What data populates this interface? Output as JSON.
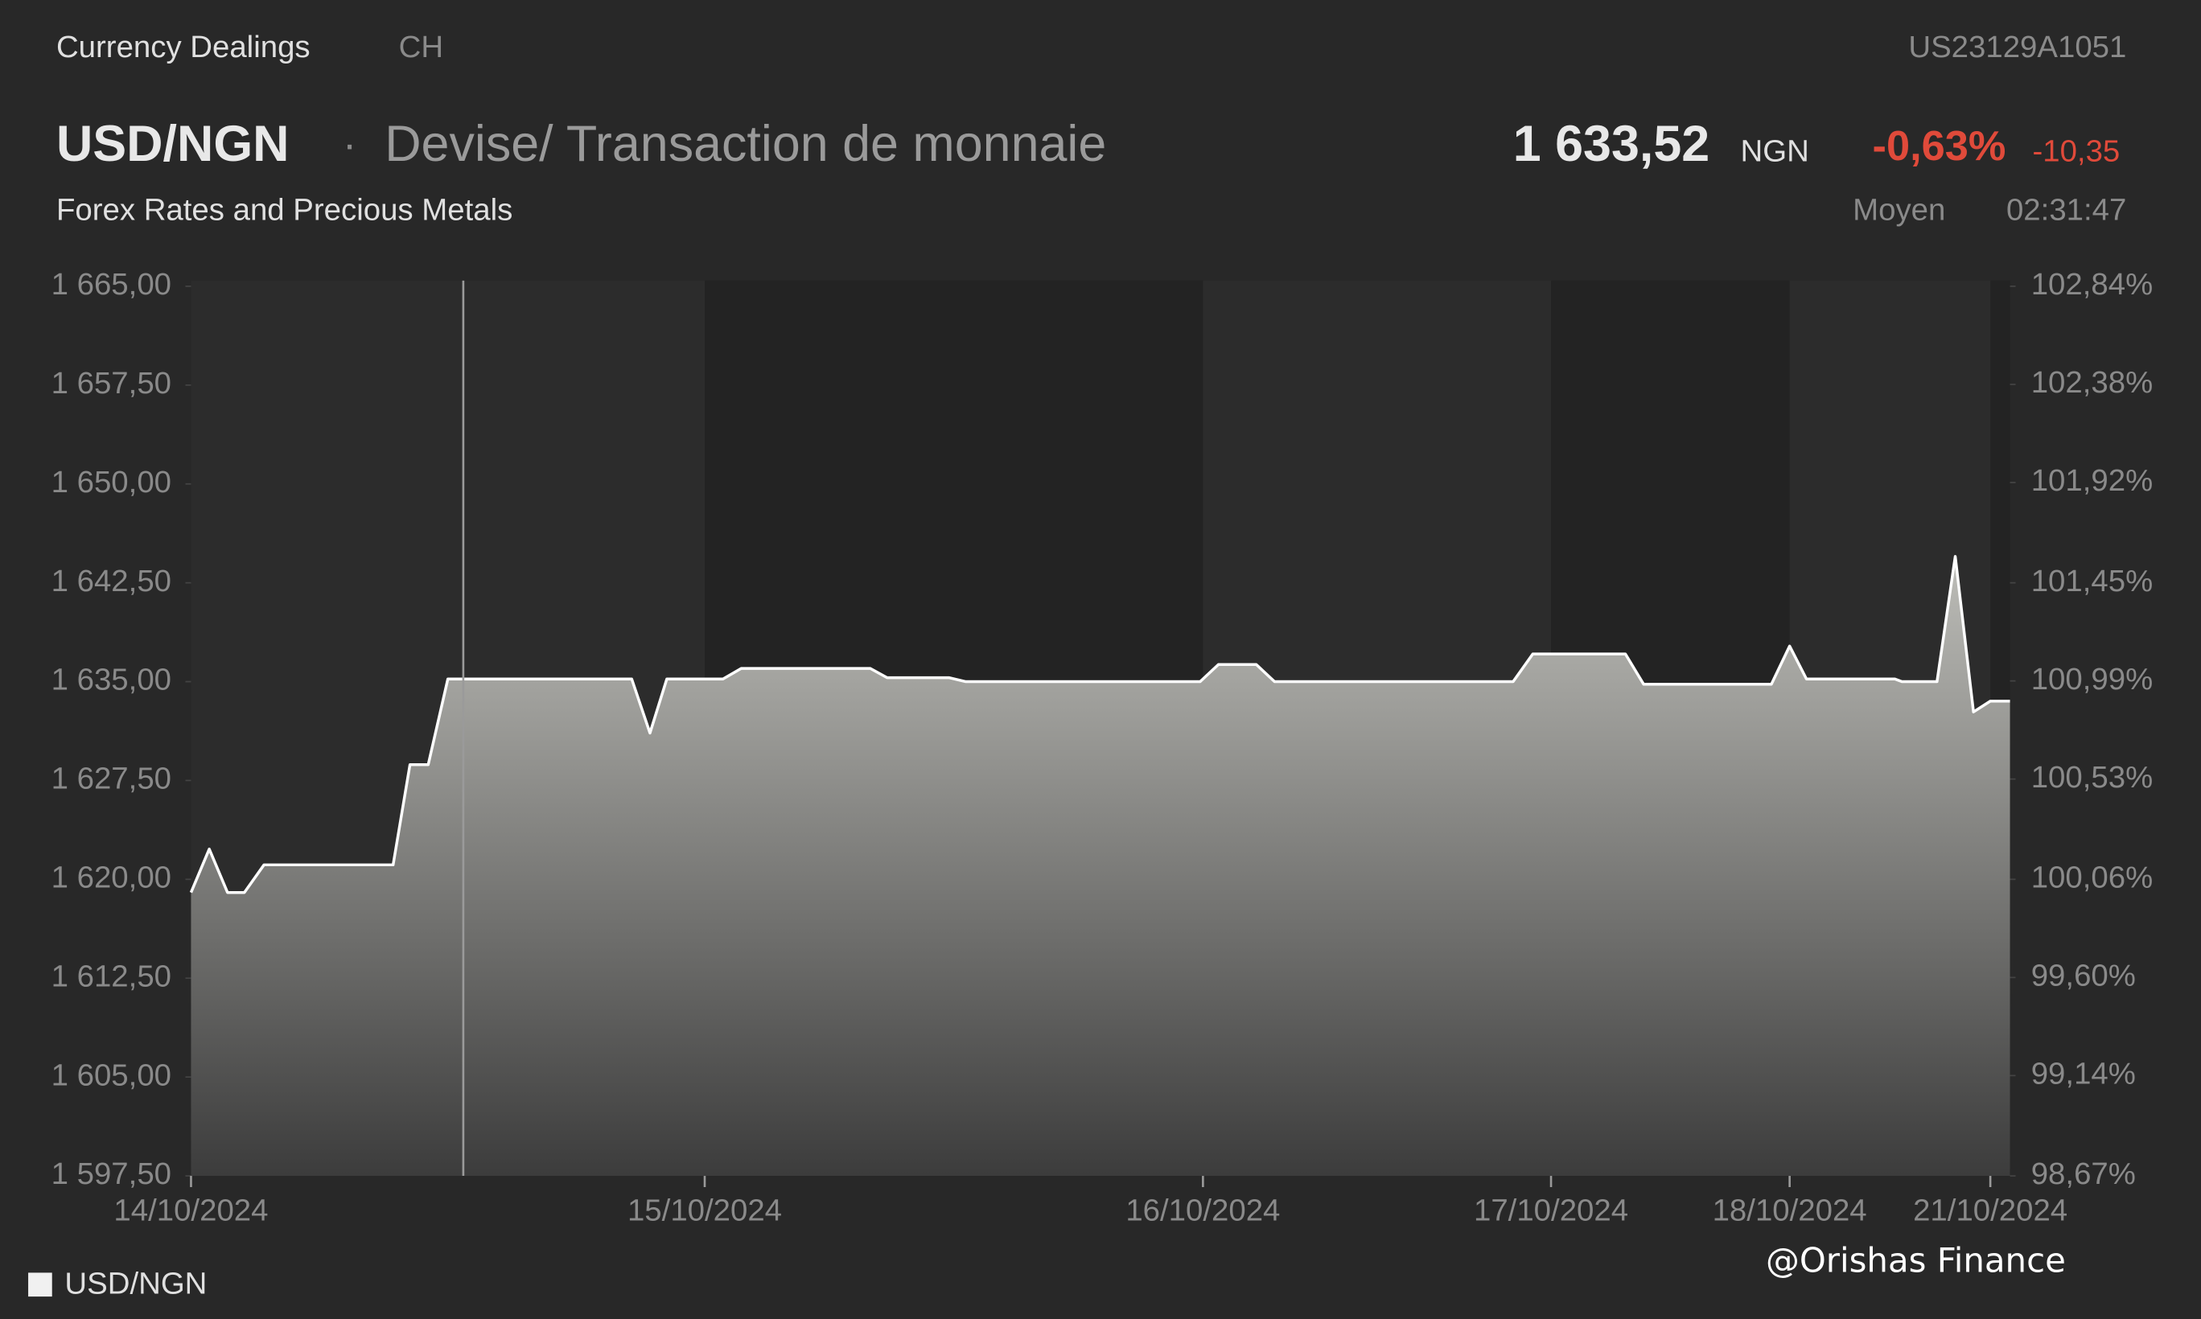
{
  "header": {
    "category": "Currency Dealings",
    "exchange": "CH",
    "isin": "US23129A1051",
    "symbol": "USD/NGN",
    "separator": "·",
    "description": "Devise/ Transaction de monnaie",
    "price": "1 633,52",
    "currency": "NGN",
    "change_pct": "-0,63%",
    "change_abs": "-10,35",
    "subtitle": "Forex Rates and Precious Metals",
    "price_type": "Moyen",
    "time": "02:31:47"
  },
  "chart_data": {
    "type": "area",
    "x": [
      0,
      3.25,
      6.5,
      9.5,
      13,
      36,
      39,
      42.25,
      45.75,
      78.5,
      81.75,
      84.75,
      94.75,
      98,
      121,
      124,
      135,
      138,
      179.75,
      183,
      189.75,
      193,
      235.5,
      239,
      255.5,
      258.75,
      281.5,
      284.75,
      287.75,
      303.5,
      304.75,
      311,
      314.25,
      317.5,
      320.5,
      324
    ],
    "series": [
      {
        "name": "USD/NGN",
        "color": "#ffffff",
        "values": [
          1619.0,
          1622.3,
          1619.0,
          1619.0,
          1621.1,
          1621.1,
          1628.7,
          1628.7,
          1635.2,
          1635.2,
          1631.1,
          1635.2,
          1635.2,
          1636.0,
          1636.0,
          1635.3,
          1635.3,
          1635.0,
          1635.0,
          1636.3,
          1636.3,
          1635.0,
          1635.0,
          1637.1,
          1637.1,
          1634.8,
          1634.8,
          1637.7,
          1635.2,
          1635.2,
          1635.0,
          1635.0,
          1644.5,
          1632.7,
          1633.52,
          1633.52
        ]
      }
    ],
    "xlim": [
      0,
      324
    ],
    "xticks": [
      {
        "value": 0,
        "label": "14/10/2024"
      },
      {
        "value": 91.5,
        "label": "15/10/2024"
      },
      {
        "value": 180.25,
        "label": "16/10/2024"
      },
      {
        "value": 242.25,
        "label": "17/10/2024"
      },
      {
        "value": 284.75,
        "label": "18/10/2024"
      },
      {
        "value": 320.5,
        "label": "21/10/2024"
      }
    ],
    "ylim": [
      1597.5,
      1665
    ],
    "yticks": [
      {
        "value": 1597.5,
        "label": "1 597,50"
      },
      {
        "value": 1605,
        "label": "1 605,00"
      },
      {
        "value": 1612.5,
        "label": "1 612,50"
      },
      {
        "value": 1620,
        "label": "1 620,00"
      },
      {
        "value": 1627.5,
        "label": "1 627,50"
      },
      {
        "value": 1635,
        "label": "1 635,00"
      },
      {
        "value": 1642.5,
        "label": "1 642,50"
      },
      {
        "value": 1650,
        "label": "1 650,00"
      },
      {
        "value": 1657.5,
        "label": "1 657,50"
      },
      {
        "value": 1665,
        "label": "1 665,00"
      }
    ],
    "y2lim": [
      98.67,
      102.84
    ],
    "y2ticks": [
      {
        "value": 98.67,
        "label": "98,67%"
      },
      {
        "value": 99.14,
        "label": "99,14%"
      },
      {
        "value": 99.6,
        "label": "99,60%"
      },
      {
        "value": 100.06,
        "label": "100,06%"
      },
      {
        "value": 100.53,
        "label": "100,53%"
      },
      {
        "value": 100.99,
        "label": "100,99%"
      },
      {
        "value": 101.45,
        "label": "101,45%"
      },
      {
        "value": 101.92,
        "label": "101,92%"
      },
      {
        "value": 102.38,
        "label": "102,38%"
      },
      {
        "value": 102.84,
        "label": "102,84%"
      }
    ]
  },
  "watermark": "@Orishas Finance"
}
